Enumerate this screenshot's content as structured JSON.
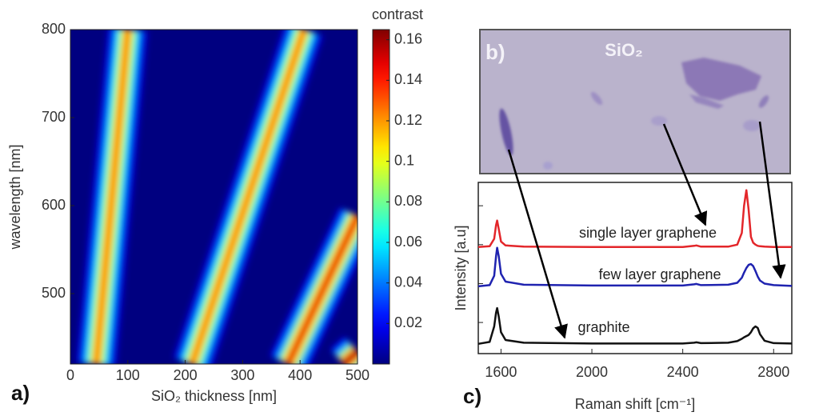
{
  "chart_data": [
    {
      "type": "heatmap",
      "panel_label": "a)",
      "xlabel": "SiO₂ thickness [nm]",
      "ylabel": "wavelength [nm]",
      "xlim": [
        0,
        500
      ],
      "ylim": [
        420,
        800
      ],
      "xticks": [
        0,
        100,
        200,
        300,
        400,
        500
      ],
      "yticks": [
        500,
        600,
        700,
        800
      ],
      "colormap": "jet",
      "colorbar": {
        "label": "contrast",
        "lim": [
          0,
          0.165
        ],
        "ticks": [
          0.02,
          0.04,
          0.06,
          0.08,
          0.1,
          0.12,
          0.14,
          0.16
        ]
      },
      "ridges": [
        {
          "thickness": [
            45,
            100
          ],
          "wavelength": [
            420,
            800
          ],
          "peak": 0.13
        },
        {
          "thickness": [
            212,
            407
          ],
          "wavelength": [
            420,
            800
          ],
          "peak": 0.13
        },
        {
          "thickness": [
            379,
            500
          ],
          "wavelength": [
            420,
            588
          ],
          "peak": 0.15
        },
        {
          "thickness": [
            476,
            500
          ],
          "wavelength": [
            420,
            434
          ],
          "peak": 0.16
        }
      ]
    },
    {
      "type": "line",
      "panel_label": "c)",
      "xlabel": "Raman shift [cm⁻¹]",
      "ylabel": "Intensity [a.u]",
      "xlim": [
        1500,
        2880
      ],
      "ylim": [
        0,
        4.4
      ],
      "xticks": [
        1600,
        2000,
        2400,
        2800
      ],
      "yticks": [
        0.8,
        1.8,
        2.8,
        3.8
      ],
      "x": [
        1500,
        1550,
        1570,
        1578,
        1583,
        1590,
        1600,
        1620,
        1700,
        2000,
        2400,
        2450,
        2460,
        2480,
        2600,
        2640,
        2660,
        2670,
        2680,
        2690,
        2700,
        2710,
        2720,
        2730,
        2740,
        2760,
        2800,
        2880
      ],
      "series": [
        {
          "name": "single layer graphene",
          "color": "#e3262a",
          "values": [
            2.74,
            2.76,
            2.95,
            3.3,
            3.42,
            3.2,
            2.88,
            2.78,
            2.75,
            2.74,
            2.74,
            2.77,
            2.78,
            2.75,
            2.75,
            2.8,
            3.1,
            3.8,
            4.2,
            3.7,
            3.0,
            2.85,
            2.8,
            2.77,
            2.76,
            2.75,
            2.74,
            2.74
          ]
        },
        {
          "name": "few layer graphene",
          "color": "#1f23b0",
          "values": [
            1.73,
            1.76,
            2.0,
            2.5,
            2.72,
            2.5,
            2.05,
            1.85,
            1.77,
            1.75,
            1.75,
            1.78,
            1.79,
            1.76,
            1.77,
            1.82,
            1.95,
            2.08,
            2.2,
            2.28,
            2.3,
            2.25,
            2.12,
            1.98,
            1.88,
            1.8,
            1.76,
            1.74
          ]
        },
        {
          "name": "graphite",
          "color": "#111111",
          "values": [
            0.25,
            0.3,
            0.7,
            1.05,
            1.17,
            0.95,
            0.55,
            0.35,
            0.28,
            0.26,
            0.26,
            0.28,
            0.29,
            0.27,
            0.28,
            0.32,
            0.38,
            0.42,
            0.45,
            0.48,
            0.55,
            0.65,
            0.7,
            0.66,
            0.5,
            0.33,
            0.27,
            0.26
          ]
        }
      ]
    }
  ],
  "photo": {
    "panel_label": "b)",
    "label": "SiO₂"
  }
}
